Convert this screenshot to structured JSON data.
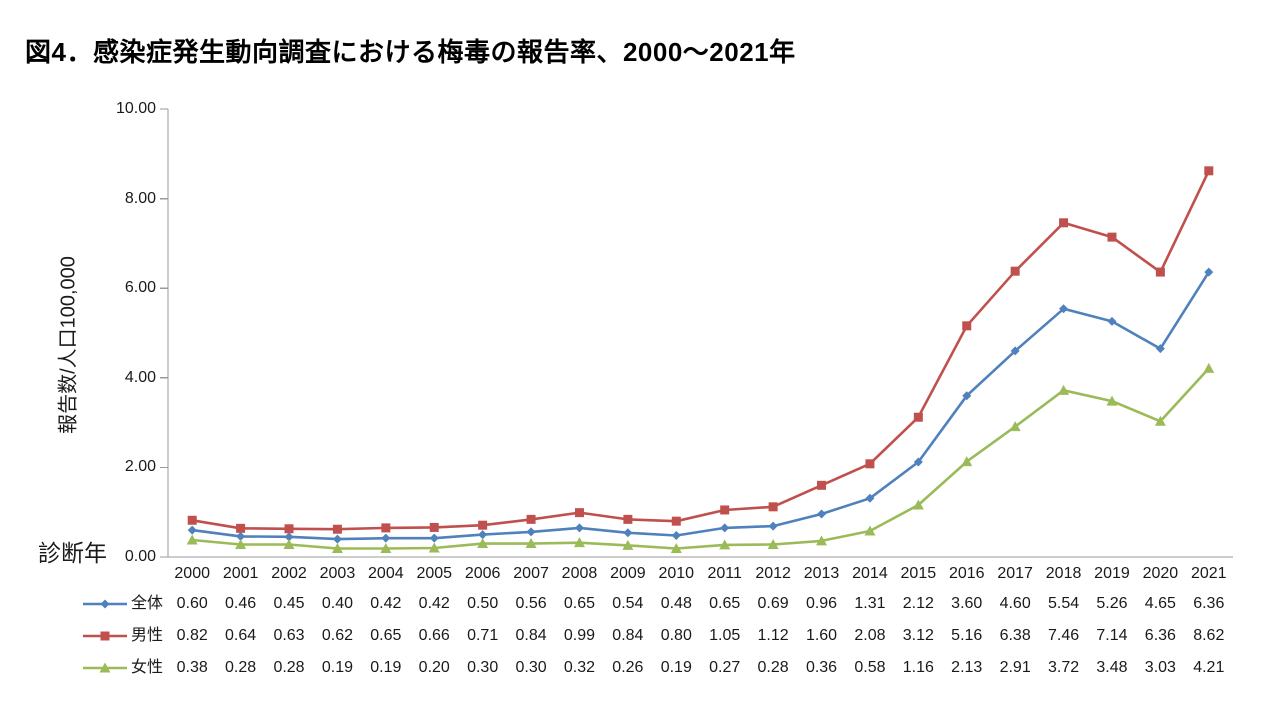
{
  "title": "図4．感染症発生動向調査における梅毒の報告率、2000～2021年",
  "chart_data": {
    "type": "line",
    "title": "図4．感染症発生動向調査における梅毒の報告率、2000～2021年",
    "ylabel": "報告数/人口100,000",
    "xlabel": "診断年",
    "ylim": [
      0,
      10
    ],
    "ytick_labels": [
      "0.00",
      "2.00",
      "4.00",
      "6.00",
      "8.00",
      "10.00"
    ],
    "grid": false,
    "legend_position": "bottom-left-table",
    "axis_color": "#9a9a9a",
    "text_color": "#1a1a1a",
    "categories": [
      "2000",
      "2001",
      "2002",
      "2003",
      "2004",
      "2005",
      "2006",
      "2007",
      "2008",
      "2009",
      "2010",
      "2011",
      "2012",
      "2013",
      "2014",
      "2015",
      "2016",
      "2017",
      "2018",
      "2019",
      "2020",
      "2021"
    ],
    "series": [
      {
        "name": "全体",
        "color": "#4F81BD",
        "marker": "diamond",
        "values": [
          "0.60",
          "0.46",
          "0.45",
          "0.40",
          "0.42",
          "0.42",
          "0.50",
          "0.56",
          "0.65",
          "0.54",
          "0.48",
          "0.65",
          "0.69",
          "0.96",
          "1.31",
          "2.12",
          "3.60",
          "4.60",
          "5.54",
          "5.26",
          "4.65",
          "6.36"
        ]
      },
      {
        "name": "男性",
        "color": "#C0504D",
        "marker": "square",
        "values": [
          "0.82",
          "0.64",
          "0.63",
          "0.62",
          "0.65",
          "0.66",
          "0.71",
          "0.84",
          "0.99",
          "0.84",
          "0.80",
          "1.05",
          "1.12",
          "1.60",
          "2.08",
          "3.12",
          "5.16",
          "6.38",
          "7.46",
          "7.14",
          "6.36",
          "8.62"
        ]
      },
      {
        "name": "女性",
        "color": "#9BBB59",
        "marker": "triangle",
        "values": [
          "0.38",
          "0.28",
          "0.28",
          "0.19",
          "0.19",
          "0.20",
          "0.30",
          "0.30",
          "0.32",
          "0.26",
          "0.19",
          "0.27",
          "0.28",
          "0.36",
          "0.58",
          "1.16",
          "2.13",
          "2.91",
          "3.72",
          "3.48",
          "3.03",
          "4.21"
        ]
      }
    ]
  }
}
